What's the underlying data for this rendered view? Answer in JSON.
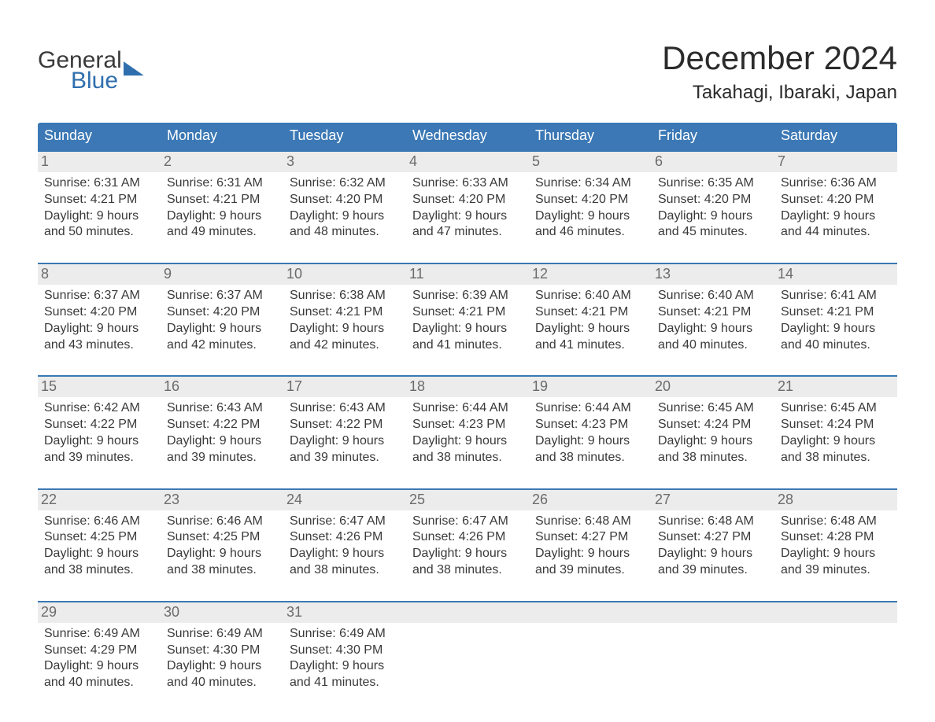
{
  "logo": {
    "top": "General",
    "bottom": "Blue"
  },
  "title": "December 2024",
  "location": "Takahagi, Ibaraki, Japan",
  "colors": {
    "header_bg": "#3b78b5",
    "header_text": "#ffffff",
    "daynum_bg": "#ececec",
    "daynum_text": "#6b6b6b",
    "body_text": "#3a3a3a",
    "accent": "#2f6fae",
    "page_bg": "#ffffff"
  },
  "weekdays": [
    "Sunday",
    "Monday",
    "Tuesday",
    "Wednesday",
    "Thursday",
    "Friday",
    "Saturday"
  ],
  "labels": {
    "sunrise": "Sunrise:",
    "sunset": "Sunset:",
    "daylight": "Daylight:"
  },
  "weeks": [
    [
      {
        "num": "1",
        "sunrise": "6:31 AM",
        "sunset": "4:21 PM",
        "daylight1": "9 hours",
        "daylight2": "and 50 minutes."
      },
      {
        "num": "2",
        "sunrise": "6:31 AM",
        "sunset": "4:21 PM",
        "daylight1": "9 hours",
        "daylight2": "and 49 minutes."
      },
      {
        "num": "3",
        "sunrise": "6:32 AM",
        "sunset": "4:20 PM",
        "daylight1": "9 hours",
        "daylight2": "and 48 minutes."
      },
      {
        "num": "4",
        "sunrise": "6:33 AM",
        "sunset": "4:20 PM",
        "daylight1": "9 hours",
        "daylight2": "and 47 minutes."
      },
      {
        "num": "5",
        "sunrise": "6:34 AM",
        "sunset": "4:20 PM",
        "daylight1": "9 hours",
        "daylight2": "and 46 minutes."
      },
      {
        "num": "6",
        "sunrise": "6:35 AM",
        "sunset": "4:20 PM",
        "daylight1": "9 hours",
        "daylight2": "and 45 minutes."
      },
      {
        "num": "7",
        "sunrise": "6:36 AM",
        "sunset": "4:20 PM",
        "daylight1": "9 hours",
        "daylight2": "and 44 minutes."
      }
    ],
    [
      {
        "num": "8",
        "sunrise": "6:37 AM",
        "sunset": "4:20 PM",
        "daylight1": "9 hours",
        "daylight2": "and 43 minutes."
      },
      {
        "num": "9",
        "sunrise": "6:37 AM",
        "sunset": "4:20 PM",
        "daylight1": "9 hours",
        "daylight2": "and 42 minutes."
      },
      {
        "num": "10",
        "sunrise": "6:38 AM",
        "sunset": "4:21 PM",
        "daylight1": "9 hours",
        "daylight2": "and 42 minutes."
      },
      {
        "num": "11",
        "sunrise": "6:39 AM",
        "sunset": "4:21 PM",
        "daylight1": "9 hours",
        "daylight2": "and 41 minutes."
      },
      {
        "num": "12",
        "sunrise": "6:40 AM",
        "sunset": "4:21 PM",
        "daylight1": "9 hours",
        "daylight2": "and 41 minutes."
      },
      {
        "num": "13",
        "sunrise": "6:40 AM",
        "sunset": "4:21 PM",
        "daylight1": "9 hours",
        "daylight2": "and 40 minutes."
      },
      {
        "num": "14",
        "sunrise": "6:41 AM",
        "sunset": "4:21 PM",
        "daylight1": "9 hours",
        "daylight2": "and 40 minutes."
      }
    ],
    [
      {
        "num": "15",
        "sunrise": "6:42 AM",
        "sunset": "4:22 PM",
        "daylight1": "9 hours",
        "daylight2": "and 39 minutes."
      },
      {
        "num": "16",
        "sunrise": "6:43 AM",
        "sunset": "4:22 PM",
        "daylight1": "9 hours",
        "daylight2": "and 39 minutes."
      },
      {
        "num": "17",
        "sunrise": "6:43 AM",
        "sunset": "4:22 PM",
        "daylight1": "9 hours",
        "daylight2": "and 39 minutes."
      },
      {
        "num": "18",
        "sunrise": "6:44 AM",
        "sunset": "4:23 PM",
        "daylight1": "9 hours",
        "daylight2": "and 38 minutes."
      },
      {
        "num": "19",
        "sunrise": "6:44 AM",
        "sunset": "4:23 PM",
        "daylight1": "9 hours",
        "daylight2": "and 38 minutes."
      },
      {
        "num": "20",
        "sunrise": "6:45 AM",
        "sunset": "4:24 PM",
        "daylight1": "9 hours",
        "daylight2": "and 38 minutes."
      },
      {
        "num": "21",
        "sunrise": "6:45 AM",
        "sunset": "4:24 PM",
        "daylight1": "9 hours",
        "daylight2": "and 38 minutes."
      }
    ],
    [
      {
        "num": "22",
        "sunrise": "6:46 AM",
        "sunset": "4:25 PM",
        "daylight1": "9 hours",
        "daylight2": "and 38 minutes."
      },
      {
        "num": "23",
        "sunrise": "6:46 AM",
        "sunset": "4:25 PM",
        "daylight1": "9 hours",
        "daylight2": "and 38 minutes."
      },
      {
        "num": "24",
        "sunrise": "6:47 AM",
        "sunset": "4:26 PM",
        "daylight1": "9 hours",
        "daylight2": "and 38 minutes."
      },
      {
        "num": "25",
        "sunrise": "6:47 AM",
        "sunset": "4:26 PM",
        "daylight1": "9 hours",
        "daylight2": "and 38 minutes."
      },
      {
        "num": "26",
        "sunrise": "6:48 AM",
        "sunset": "4:27 PM",
        "daylight1": "9 hours",
        "daylight2": "and 39 minutes."
      },
      {
        "num": "27",
        "sunrise": "6:48 AM",
        "sunset": "4:27 PM",
        "daylight1": "9 hours",
        "daylight2": "and 39 minutes."
      },
      {
        "num": "28",
        "sunrise": "6:48 AM",
        "sunset": "4:28 PM",
        "daylight1": "9 hours",
        "daylight2": "and 39 minutes."
      }
    ],
    [
      {
        "num": "29",
        "sunrise": "6:49 AM",
        "sunset": "4:29 PM",
        "daylight1": "9 hours",
        "daylight2": "and 40 minutes."
      },
      {
        "num": "30",
        "sunrise": "6:49 AM",
        "sunset": "4:30 PM",
        "daylight1": "9 hours",
        "daylight2": "and 40 minutes."
      },
      {
        "num": "31",
        "sunrise": "6:49 AM",
        "sunset": "4:30 PM",
        "daylight1": "9 hours",
        "daylight2": "and 41 minutes."
      },
      null,
      null,
      null,
      null
    ]
  ]
}
